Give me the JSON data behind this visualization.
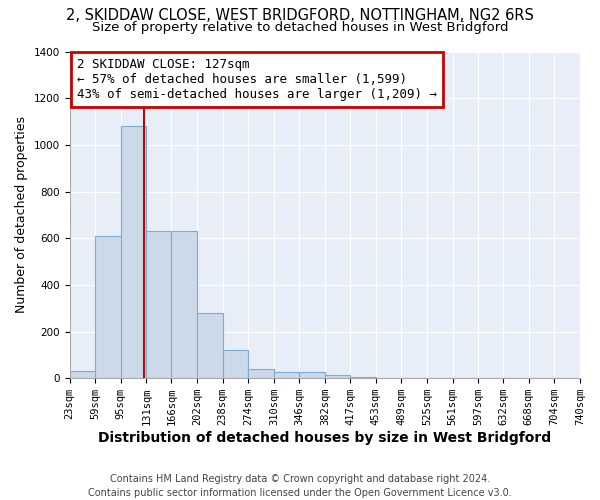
{
  "title_line1": "2, SKIDDAW CLOSE, WEST BRIDGFORD, NOTTINGHAM, NG2 6RS",
  "title_line2": "Size of property relative to detached houses in West Bridgford",
  "xlabel": "Distribution of detached houses by size in West Bridgford",
  "ylabel": "Number of detached properties",
  "footer_line1": "Contains HM Land Registry data © Crown copyright and database right 2024.",
  "footer_line2": "Contains public sector information licensed under the Open Government Licence v3.0.",
  "annotation_line1": "2 SKIDDAW CLOSE: 127sqm",
  "annotation_line2": "← 57% of detached houses are smaller (1,599)",
  "annotation_line3": "43% of semi-detached houses are larger (1,209) →",
  "bin_edges": [
    23,
    59,
    95,
    131,
    166,
    202,
    238,
    274,
    310,
    346,
    382,
    417,
    453,
    489,
    525,
    561,
    597,
    632,
    668,
    704,
    740
  ],
  "bin_heights": [
    30,
    610,
    1080,
    630,
    630,
    280,
    120,
    40,
    25,
    25,
    15,
    5,
    0,
    0,
    0,
    0,
    0,
    0,
    0,
    0
  ],
  "bar_color": "#ccd9e8",
  "bar_edge_color": "#7aadd4",
  "property_line_x": 127,
  "property_line_color": "#cc0000",
  "annotation_box_edge_color": "#cc0000",
  "annotation_box_face_color": "#ffffff",
  "ylim": [
    0,
    1400
  ],
  "yticks": [
    0,
    200,
    400,
    600,
    800,
    1000,
    1200,
    1400
  ],
  "fig_background_color": "#ffffff",
  "plot_background_color": "#e8eef8",
  "grid_color": "#ffffff",
  "title_fontsize": 10.5,
  "subtitle_fontsize": 9.5,
  "axis_label_fontsize": 9,
  "tick_fontsize": 7.5,
  "annotation_fontsize": 9,
  "footer_fontsize": 7
}
